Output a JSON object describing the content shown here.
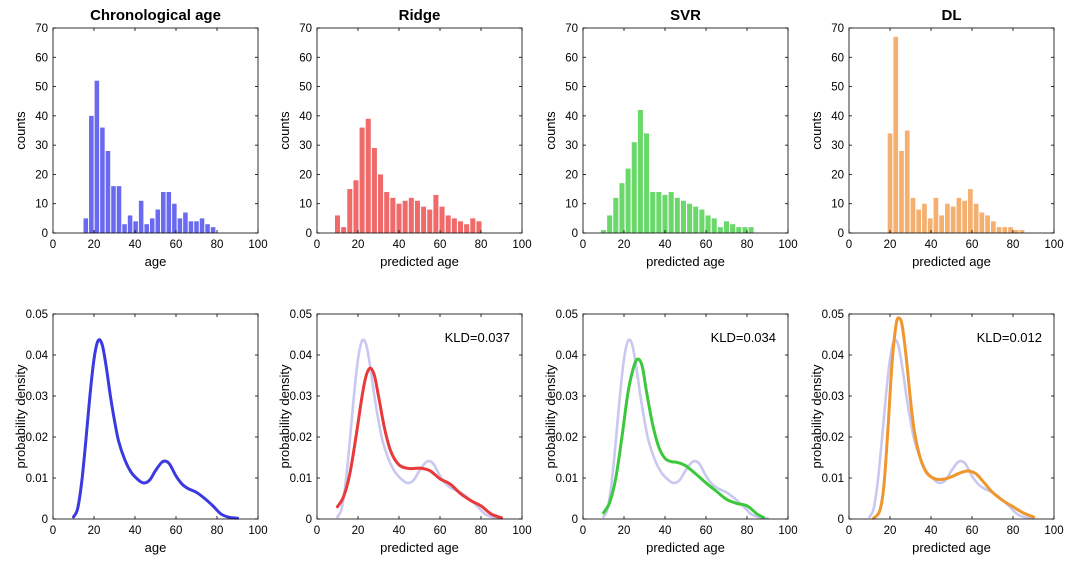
{
  "colors": {
    "chrono": "#3a3ae0",
    "ridge": "#e83a3a",
    "svr": "#3cc83c",
    "dl": "#f0962e",
    "reference": "#c8c8f0",
    "frame": "#000000"
  },
  "chart_data": [
    {
      "type": "bar",
      "title": "Chronological age",
      "xlabel": "age",
      "ylabel": "counts",
      "xlim": [
        0,
        100
      ],
      "ylim": [
        0,
        70
      ],
      "xticks": [
        "0",
        "20",
        "40",
        "60",
        "80",
        "100"
      ],
      "yticks": [
        "0",
        "10",
        "20",
        "30",
        "40",
        "50",
        "60",
        "70"
      ],
      "bin_width": 2.7,
      "bin_centers": [
        16,
        18.7,
        21.4,
        24.1,
        26.8,
        29.5,
        32.2,
        34.9,
        37.6,
        40.3,
        43,
        45.7,
        48.4,
        51.1,
        53.8,
        56.5,
        59.2,
        61.9,
        64.6,
        67.3,
        70,
        72.7,
        75.4,
        78.1
      ],
      "counts": [
        5,
        40,
        52,
        36,
        28,
        16,
        16,
        3,
        6,
        4,
        11,
        3,
        5,
        8,
        14,
        14,
        10,
        5,
        7,
        4,
        4,
        5,
        3,
        2
      ],
      "color": "#6a6af0"
    },
    {
      "type": "bar",
      "title": "Ridge",
      "xlabel": "predicted age",
      "ylabel": "counts",
      "xlim": [
        0,
        100
      ],
      "ylim": [
        0,
        70
      ],
      "xticks": [
        "0",
        "20",
        "40",
        "60",
        "80",
        "100"
      ],
      "yticks": [
        "0",
        "10",
        "20",
        "30",
        "40",
        "50",
        "60",
        "70"
      ],
      "bin_width": 3,
      "bin_centers": [
        10,
        13,
        16,
        19,
        22,
        25,
        28,
        31,
        34,
        37,
        40,
        43,
        46,
        49,
        52,
        55,
        58,
        61,
        64,
        67,
        70,
        73,
        76,
        79
      ],
      "counts": [
        6,
        2,
        15,
        18,
        36,
        39,
        29,
        20,
        14,
        12,
        10,
        11,
        12,
        11,
        9,
        8,
        13,
        9,
        6,
        5,
        4,
        3,
        5,
        4
      ],
      "color": "#f06a6a"
    },
    {
      "type": "bar",
      "title": "SVR",
      "xlabel": "predicted age",
      "ylabel": "counts",
      "xlim": [
        0,
        100
      ],
      "ylim": [
        0,
        70
      ],
      "xticks": [
        "0",
        "20",
        "40",
        "60",
        "80",
        "100"
      ],
      "yticks": [
        "0",
        "10",
        "20",
        "30",
        "40",
        "50",
        "60",
        "70"
      ],
      "bin_width": 3,
      "bin_centers": [
        10,
        13,
        16,
        19,
        22,
        25,
        28,
        31,
        34,
        37,
        40,
        43,
        46,
        49,
        52,
        55,
        58,
        61,
        64,
        67,
        70,
        73,
        76,
        79,
        82
      ],
      "counts": [
        1,
        6,
        12,
        17,
        22,
        31,
        42,
        34,
        14,
        14,
        13,
        14,
        12,
        11,
        10,
        9,
        8,
        6,
        5,
        2,
        4,
        3,
        2,
        2,
        2
      ],
      "color": "#6ad86a"
    },
    {
      "type": "bar",
      "title": "DL",
      "xlabel": "predicted age",
      "ylabel": "counts",
      "xlim": [
        0,
        100
      ],
      "ylim": [
        0,
        70
      ],
      "xticks": [
        "0",
        "20",
        "40",
        "60",
        "80",
        "100"
      ],
      "yticks": [
        "0",
        "10",
        "20",
        "30",
        "40",
        "50",
        "60",
        "70"
      ],
      "bin_width": 2.8,
      "bin_centers": [
        20,
        22.8,
        25.6,
        28.4,
        31.2,
        34,
        36.8,
        39.6,
        42.4,
        45.2,
        48,
        50.8,
        53.6,
        56.4,
        59.2,
        62,
        64.8,
        67.6,
        70.4,
        73.2,
        76,
        78.8,
        81.6,
        84.4
      ],
      "counts": [
        34,
        67,
        28,
        35,
        12,
        8,
        10,
        5,
        12,
        6,
        10,
        9,
        12,
        11,
        15,
        10,
        7,
        6,
        4,
        2,
        2,
        2,
        1,
        1
      ],
      "color": "#f5b070"
    },
    {
      "type": "line",
      "xlabel": "age",
      "ylabel": "probability density",
      "xlim": [
        0,
        100
      ],
      "ylim": [
        0,
        0.05
      ],
      "xticks": [
        "0",
        "20",
        "40",
        "60",
        "80",
        "100"
      ],
      "yticks": [
        "0",
        "0.01",
        "0.02",
        "0.03",
        "0.04",
        "0.05"
      ],
      "annotation": "",
      "series": [
        {
          "name": "Chronological age",
          "color": "#3a3ae0",
          "x": [
            10,
            12,
            14,
            16,
            18,
            20,
            22,
            24,
            26,
            28,
            30,
            32,
            35,
            38,
            41,
            44,
            47,
            50,
            53,
            55,
            57,
            60,
            63,
            66,
            70,
            74,
            78,
            82,
            86,
            90
          ],
          "y": [
            0.0005,
            0.0025,
            0.009,
            0.019,
            0.03,
            0.039,
            0.0435,
            0.0425,
            0.037,
            0.03,
            0.024,
            0.019,
            0.0145,
            0.0115,
            0.0098,
            0.0088,
            0.0094,
            0.0118,
            0.0138,
            0.0141,
            0.0133,
            0.0105,
            0.0085,
            0.0074,
            0.0065,
            0.005,
            0.0032,
            0.0012,
            0.0004,
            0.0002
          ]
        }
      ]
    },
    {
      "type": "line",
      "xlabel": "predicted age",
      "ylabel": "probability density",
      "xlim": [
        0,
        100
      ],
      "ylim": [
        0,
        0.05
      ],
      "xticks": [
        "0",
        "20",
        "40",
        "60",
        "80",
        "100"
      ],
      "yticks": [
        "0",
        "0.01",
        "0.02",
        "0.03",
        "0.04",
        "0.05"
      ],
      "annotation": "KLD=0.037",
      "series": [
        {
          "name": "Chronological age",
          "color": "#c8c8f0",
          "x": [
            10,
            12,
            14,
            16,
            18,
            20,
            22,
            24,
            26,
            28,
            30,
            32,
            35,
            38,
            41,
            44,
            47,
            50,
            53,
            55,
            57,
            60,
            63,
            66,
            70,
            74,
            78,
            82,
            86,
            90
          ],
          "y": [
            0.0005,
            0.0025,
            0.009,
            0.019,
            0.03,
            0.039,
            0.0435,
            0.0425,
            0.037,
            0.03,
            0.024,
            0.019,
            0.0145,
            0.0115,
            0.0098,
            0.0088,
            0.0094,
            0.0118,
            0.0138,
            0.0141,
            0.0133,
            0.0105,
            0.0085,
            0.0074,
            0.0065,
            0.005,
            0.0032,
            0.0012,
            0.0004,
            0.0002
          ]
        },
        {
          "name": "Ridge",
          "color": "#e83a3a",
          "x": [
            10,
            13,
            16,
            19,
            22,
            24,
            26,
            28,
            30,
            33,
            36,
            40,
            45,
            50,
            55,
            60,
            65,
            70,
            75,
            80,
            85,
            90
          ],
          "y": [
            0.003,
            0.0055,
            0.011,
            0.02,
            0.03,
            0.035,
            0.0368,
            0.035,
            0.03,
            0.022,
            0.0165,
            0.0132,
            0.0123,
            0.0124,
            0.0118,
            0.0098,
            0.0085,
            0.0062,
            0.0045,
            0.0032,
            0.0012,
            0.0003
          ]
        }
      ]
    },
    {
      "type": "line",
      "xlabel": "predicted age",
      "ylabel": "probability density",
      "xlim": [
        0,
        100
      ],
      "ylim": [
        0,
        0.05
      ],
      "xticks": [
        "0",
        "20",
        "40",
        "60",
        "80",
        "100"
      ],
      "yticks": [
        "0",
        "0.01",
        "0.02",
        "0.03",
        "0.04",
        "0.05"
      ],
      "annotation": "KLD=0.034",
      "series": [
        {
          "name": "Chronological age",
          "color": "#c8c8f0",
          "x": [
            10,
            12,
            14,
            16,
            18,
            20,
            22,
            24,
            26,
            28,
            30,
            32,
            35,
            38,
            41,
            44,
            47,
            50,
            53,
            55,
            57,
            60,
            63,
            66,
            70,
            74,
            78,
            82,
            86,
            90
          ],
          "y": [
            0.0005,
            0.0025,
            0.009,
            0.019,
            0.03,
            0.039,
            0.0435,
            0.0425,
            0.037,
            0.03,
            0.024,
            0.019,
            0.0145,
            0.0115,
            0.0098,
            0.0088,
            0.0094,
            0.0118,
            0.0138,
            0.0141,
            0.0133,
            0.0105,
            0.0085,
            0.0074,
            0.0065,
            0.005,
            0.0032,
            0.0012,
            0.0004,
            0.0002
          ]
        },
        {
          "name": "SVR",
          "color": "#3cc83c",
          "x": [
            10,
            13,
            16,
            19,
            22,
            25,
            27,
            29,
            31,
            34,
            37,
            40,
            43,
            46,
            50,
            55,
            60,
            65,
            70,
            75,
            80,
            85,
            88
          ],
          "y": [
            0.0015,
            0.004,
            0.01,
            0.02,
            0.031,
            0.0375,
            0.039,
            0.037,
            0.031,
            0.023,
            0.0175,
            0.0148,
            0.014,
            0.0138,
            0.013,
            0.011,
            0.0088,
            0.0068,
            0.0048,
            0.0038,
            0.0032,
            0.0012,
            0.0004
          ]
        }
      ]
    },
    {
      "type": "line",
      "xlabel": "predicted age",
      "ylabel": "probability density",
      "xlim": [
        0,
        100
      ],
      "ylim": [
        0,
        0.05
      ],
      "xticks": [
        "0",
        "20",
        "40",
        "60",
        "80",
        "100"
      ],
      "yticks": [
        "0",
        "0.01",
        "0.02",
        "0.03",
        "0.04",
        "0.05"
      ],
      "annotation": "KLD=0.012",
      "series": [
        {
          "name": "Chronological age",
          "color": "#c8c8f0",
          "x": [
            10,
            12,
            14,
            16,
            18,
            20,
            22,
            24,
            26,
            28,
            30,
            32,
            35,
            38,
            41,
            44,
            47,
            50,
            53,
            55,
            57,
            60,
            63,
            66,
            70,
            74,
            78,
            82,
            86,
            90
          ],
          "y": [
            0.0005,
            0.0025,
            0.009,
            0.019,
            0.03,
            0.039,
            0.0435,
            0.0425,
            0.037,
            0.03,
            0.024,
            0.019,
            0.0145,
            0.0115,
            0.0098,
            0.0088,
            0.0094,
            0.0118,
            0.0138,
            0.0141,
            0.0133,
            0.0105,
            0.0085,
            0.0074,
            0.0065,
            0.005,
            0.0032,
            0.0012,
            0.0004,
            0.0002
          ]
        },
        {
          "name": "DL",
          "color": "#f0962e",
          "x": [
            12,
            15,
            17,
            19,
            21,
            23,
            24.5,
            26,
            28,
            30,
            32,
            35,
            38,
            42,
            46,
            50,
            54,
            58,
            62,
            66,
            70,
            75,
            80,
            85,
            90
          ],
          "y": [
            0.0002,
            0.002,
            0.008,
            0.022,
            0.038,
            0.0475,
            0.049,
            0.047,
            0.039,
            0.029,
            0.021,
            0.0145,
            0.0112,
            0.0098,
            0.0097,
            0.0103,
            0.0112,
            0.0117,
            0.011,
            0.0088,
            0.0065,
            0.0045,
            0.003,
            0.0015,
            0.0005
          ]
        }
      ]
    }
  ]
}
